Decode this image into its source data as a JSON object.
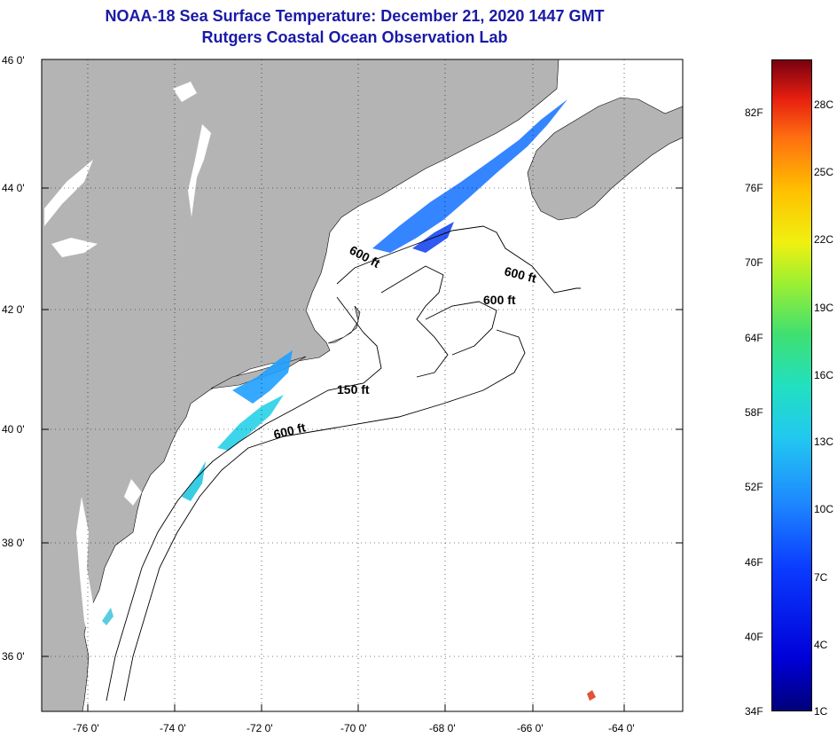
{
  "title": {
    "line1": "NOAA-18 Sea Surface Temperature:  December 21, 2020 1447 GMT",
    "line2": "Rutgers Coastal Ocean Observation Lab"
  },
  "map": {
    "lat_labels": [
      "46 0'",
      "44 0'",
      "42 0'",
      "40 0'",
      "38 0'",
      "36 0'"
    ],
    "lon_labels": [
      "-76 0'",
      "-74 0'",
      "-72 0'",
      "-70 0'",
      "-68 0'",
      "-66 0'",
      "-64 0'"
    ],
    "contour_labels": [
      "600 ft",
      "600 ft",
      "600 ft",
      "150 ft",
      "600 ft"
    ],
    "colors": {
      "land": "#b4b4b4",
      "ocean": "#ffffff",
      "title": "#1a1aa6"
    }
  },
  "colorbar": {
    "fahrenheit": [
      "82F",
      "76F",
      "70F",
      "64F",
      "58F",
      "52F",
      "46F",
      "40F",
      "34F"
    ],
    "celsius": [
      "28C",
      "25C",
      "22C",
      "19C",
      "16C",
      "13C",
      "10C",
      "7C",
      "4C",
      "1C"
    ]
  }
}
